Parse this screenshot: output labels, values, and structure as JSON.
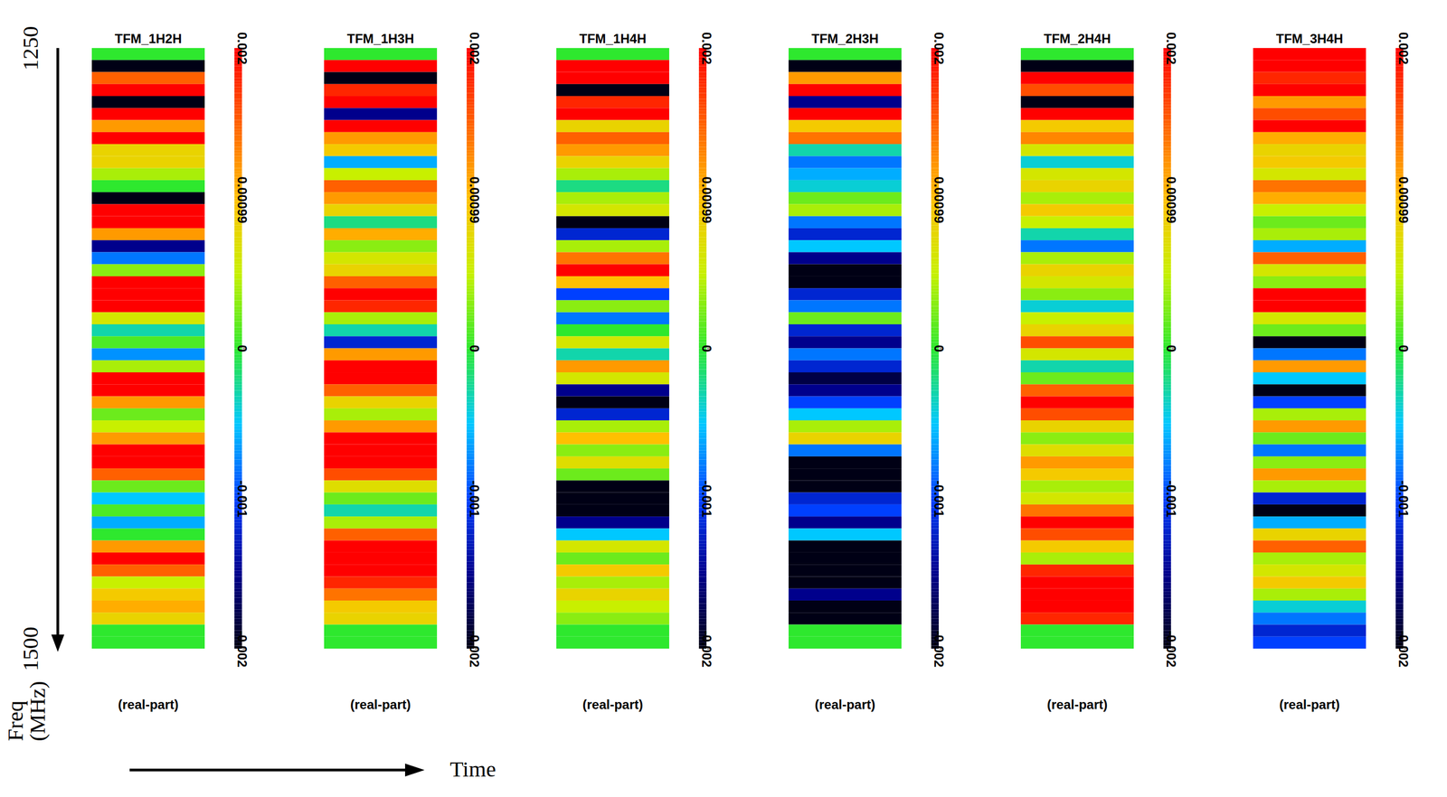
{
  "chart_data": {
    "type": "heatmap",
    "ylabel": "Freq (MHz)",
    "xlabel": "Time",
    "ylim": [
      1250,
      1500
    ],
    "yticks": [
      1250,
      1500
    ],
    "tick_labels": "y",
    "y": [
      1250,
      1255,
      1260,
      1265,
      1270,
      1275,
      1280,
      1285,
      1290,
      1295,
      1300,
      1305,
      1310,
      1315,
      1320,
      1325,
      1330,
      1335,
      1340,
      1345,
      1350,
      1355,
      1360,
      1365,
      1370,
      1375,
      1380,
      1385,
      1390,
      1395,
      1400,
      1405,
      1410,
      1415,
      1420,
      1425,
      1430,
      1435,
      1440,
      1445,
      1450,
      1455,
      1460,
      1465,
      1470,
      1475,
      1480,
      1485,
      1490,
      1495
    ],
    "colorbar": {
      "range": [
        -0.002,
        0.002
      ],
      "ticks": [
        0.002,
        0.00099,
        0,
        -0.001,
        -0.002
      ]
    },
    "panels": [
      {
        "title": "TFM_1H2H",
        "subtitle": "(real-part)",
        "values": [
          0,
          -0.0025,
          0.0015,
          0.002,
          -0.002,
          0.002,
          0.0012,
          0.002,
          0.0008,
          0.0008,
          0.0004,
          0,
          -0.0025,
          0.002,
          0.002,
          0.0012,
          -0.0015,
          -0.0008,
          0.0003,
          0.002,
          0.002,
          0.002,
          0.0006,
          -0.0003,
          0.0001,
          -0.0007,
          0.0004,
          0.002,
          0.002,
          0.0012,
          0.0002,
          0.0005,
          0.0012,
          0.002,
          0.002,
          0.0015,
          0.0002,
          -0.0005,
          0.0001,
          -0.0006,
          0,
          0.0012,
          0.002,
          0.0015,
          0.0005,
          0.0009,
          0.0011,
          0.0008,
          0,
          0
        ]
      },
      {
        "title": "TFM_1H3H",
        "subtitle": "(real-part)",
        "values": [
          0,
          0.002,
          -0.002,
          0.0018,
          0.002,
          -0.0015,
          0.002,
          0.0012,
          0.0009,
          -0.0006,
          0.0005,
          0.0015,
          0.0012,
          0.0008,
          -0.0002,
          0.0011,
          0.0003,
          0.0006,
          0.0008,
          0.0015,
          0.002,
          0.0018,
          0.0004,
          -0.0003,
          -0.0012,
          0.0012,
          0.002,
          0.002,
          0.0015,
          0.0008,
          0.0004,
          0.0012,
          0.002,
          0.002,
          0.002,
          0.0016,
          0.0007,
          0.0002,
          -0.0003,
          0.0004,
          0.0015,
          0.002,
          0.002,
          0.002,
          0.0018,
          0.0014,
          0.0009,
          0.0008,
          0,
          0
        ]
      },
      {
        "title": "TFM_1H4H",
        "subtitle": "(real-part)",
        "values": [
          0,
          0.002,
          0.002,
          -0.002,
          0.0018,
          0.002,
          0.0008,
          0.0015,
          0.0012,
          0.0008,
          0.0004,
          -0.0002,
          0.0004,
          0.0006,
          -0.0025,
          -0.0012,
          0.0004,
          0.0014,
          0.002,
          0.001,
          -0.001,
          0.0003,
          -0.0008,
          0,
          0.0006,
          -0.0003,
          0.0012,
          0.0006,
          -0.0015,
          -0.0025,
          -0.0012,
          0.0004,
          0.001,
          0.0003,
          0.0007,
          0.0002,
          -0.002,
          -0.0025,
          -0.0022,
          -0.0015,
          -0.0005,
          0.0006,
          0.0002,
          0.0009,
          0.0004,
          0.0008,
          0.0005,
          0.0003,
          0,
          0
        ]
      },
      {
        "title": "TFM_2H3H",
        "subtitle": "(real-part)",
        "values": [
          0,
          -0.0025,
          0.0012,
          0.002,
          -0.0015,
          0.002,
          0.0009,
          0.0014,
          -0.0003,
          -0.0008,
          -0.0006,
          -0.0004,
          0.0002,
          0.0004,
          -0.0008,
          -0.0012,
          -0.0005,
          -0.0015,
          -0.0025,
          -0.002,
          -0.0012,
          -0.0008,
          0.0002,
          -0.0012,
          -0.0015,
          -0.0008,
          -0.0012,
          -0.0018,
          -0.0015,
          -0.001,
          -0.0005,
          0.0004,
          0.0008,
          -0.0008,
          -0.0025,
          -0.0025,
          -0.0022,
          -0.0012,
          -0.001,
          -0.0015,
          -0.0005,
          -0.0025,
          -0.0025,
          -0.0025,
          -0.0025,
          -0.0015,
          -0.0025,
          -0.0025,
          0,
          0
        ]
      },
      {
        "title": "TFM_2H4H",
        "subtitle": "(real-part)",
        "values": [
          0,
          -0.0025,
          0.002,
          0.0016,
          -0.002,
          0.002,
          0.0009,
          0.0013,
          0.0006,
          -0.0004,
          0.0006,
          0.0008,
          0.0004,
          0.0009,
          0.0005,
          -0.0003,
          -0.0008,
          0.0004,
          0.0008,
          0.0006,
          0.0003,
          -0.0004,
          0.0005,
          0.0008,
          0.0016,
          0.0006,
          -0.0003,
          0.0002,
          0.0015,
          0.002,
          0.0016,
          0.0008,
          0.0003,
          0.0007,
          0.0012,
          0.0009,
          0.0004,
          0.0006,
          0.0014,
          0.002,
          0.0016,
          0.0009,
          0.0004,
          0.0018,
          0.002,
          0.002,
          0.002,
          0.0018,
          0,
          0
        ]
      },
      {
        "title": "TFM_3H4H",
        "subtitle": "(real-part)",
        "values": [
          0.002,
          0.002,
          0.0018,
          0.002,
          0.0012,
          0.0016,
          0.002,
          0.0011,
          0.0008,
          0.0009,
          0.0006,
          0.0014,
          0.0011,
          0.0005,
          0.0002,
          0.0004,
          -0.0006,
          0.0015,
          0.0006,
          0.0003,
          0.002,
          0.002,
          0.0006,
          0.0002,
          -0.0025,
          -0.0008,
          0.0012,
          -0.0005,
          -0.0025,
          -0.001,
          0.0004,
          0.0012,
          0.0002,
          -0.0008,
          0.0003,
          0.0012,
          0.0004,
          -0.0012,
          -0.0025,
          -0.0006,
          0.0008,
          0.0015,
          0.0004,
          0.0006,
          0.0009,
          0.0004,
          -0.0004,
          -0.0008,
          -0.0012,
          -0.001
        ]
      }
    ]
  }
}
